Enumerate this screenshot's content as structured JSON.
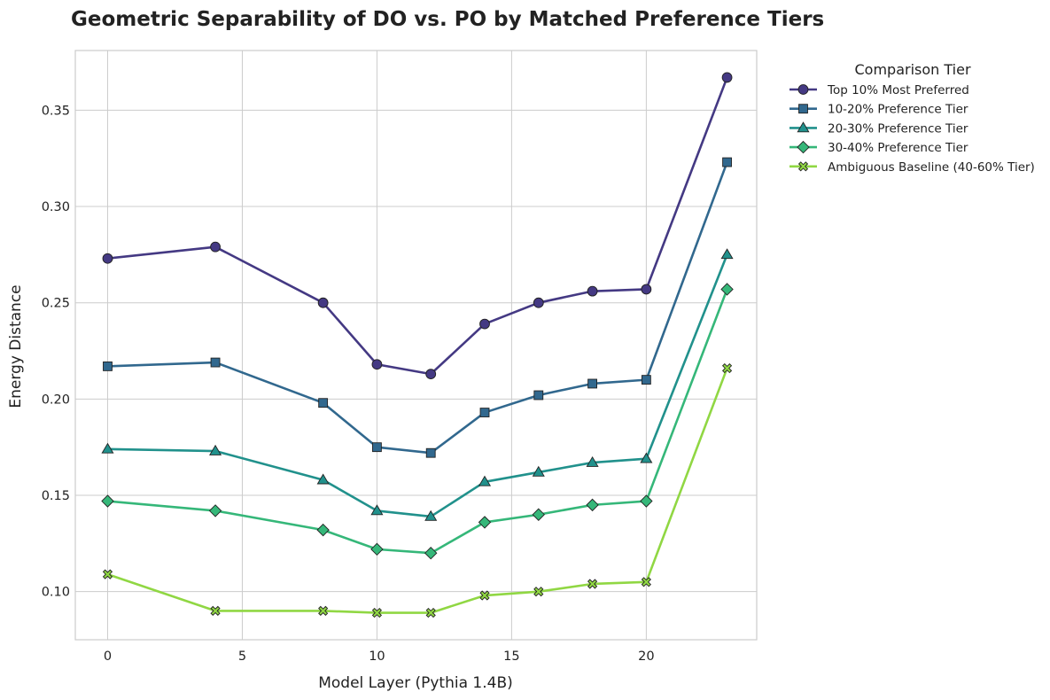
{
  "chart_data": {
    "type": "line",
    "title": "Geometric Separability of DO vs. PO by Matched Preference Tiers",
    "xlabel": "Model Layer (Pythia 1.4B)",
    "ylabel": "Energy Distance",
    "xlim": [
      -1.2,
      24.1
    ],
    "ylim": [
      0.075,
      0.381
    ],
    "xticks": [
      0,
      5,
      10,
      15,
      20
    ],
    "yticks": [
      0.1,
      0.15,
      0.2,
      0.25,
      0.3,
      0.35
    ],
    "ytick_labels": [
      "0.10",
      "0.15",
      "0.20",
      "0.25",
      "0.30",
      "0.35"
    ],
    "grid": true,
    "legend_title": "Comparison Tier",
    "legend_position": "outside-top-right",
    "x": [
      0,
      4,
      8,
      10,
      12,
      14,
      16,
      18,
      20,
      23
    ],
    "series": [
      {
        "name": "Top 10% Most Preferred",
        "color": "#443983",
        "marker": "circle",
        "values": [
          0.273,
          0.279,
          0.25,
          0.218,
          0.213,
          0.239,
          0.25,
          0.256,
          0.257,
          0.367
        ]
      },
      {
        "name": "10-20% Preference Tier",
        "color": "#31688e",
        "marker": "square",
        "values": [
          0.217,
          0.219,
          0.198,
          0.175,
          0.172,
          0.193,
          0.202,
          0.208,
          0.21,
          0.323
        ]
      },
      {
        "name": "20-30% Preference Tier",
        "color": "#21918c",
        "marker": "triangle",
        "values": [
          0.174,
          0.173,
          0.158,
          0.142,
          0.139,
          0.157,
          0.162,
          0.167,
          0.169,
          0.275
        ]
      },
      {
        "name": "30-40% Preference Tier",
        "color": "#35b779",
        "marker": "diamond",
        "values": [
          0.147,
          0.142,
          0.132,
          0.122,
          0.12,
          0.136,
          0.14,
          0.145,
          0.147,
          0.257
        ]
      },
      {
        "name": "Ambiguous Baseline (40-60% Tier)",
        "color": "#90d743",
        "marker": "x",
        "values": [
          0.109,
          0.09,
          0.09,
          0.089,
          0.089,
          0.098,
          0.1,
          0.104,
          0.105,
          0.216
        ]
      }
    ]
  }
}
